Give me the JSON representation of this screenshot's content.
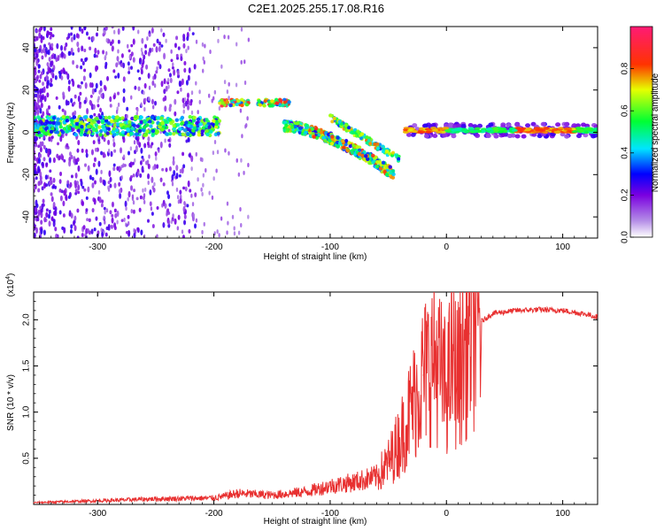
{
  "title": "C2E1.2025.255.17.08.R16",
  "spectrogram": {
    "chart_data": {
      "type": "heatmap",
      "xlabel": "Height of straight line (km)",
      "ylabel": "Frequency (Hz)",
      "xlim": [
        -355,
        130
      ],
      "ylim": [
        -50,
        50
      ],
      "xticks": [
        -300,
        -200,
        -100,
        0,
        100
      ],
      "yticks": [
        -40,
        -20,
        0,
        20,
        40
      ],
      "colorbar": {
        "label": "Normalized spectral amplitude",
        "range": [
          0,
          1
        ],
        "ticks": [
          0.0,
          0.2,
          0.4,
          0.6,
          0.8
        ],
        "tick_labels": [
          "0.0",
          "0.2",
          "0.4",
          "0.6",
          "0.8"
        ],
        "colors": [
          "#ffffff",
          "#8a2be2",
          "#0000ff",
          "#00ffff",
          "#00ff00",
          "#ffff00",
          "#ff0000",
          "#ff1493"
        ]
      },
      "features": [
        {
          "name": "main band",
          "x_range": [
            -355,
            -195
          ],
          "freq_hz": 3,
          "amplitude": 0.45
        },
        {
          "name": "descending tone",
          "x_range": [
            -140,
            -45
          ],
          "freq_hz_start": 3,
          "freq_hz_end": -20,
          "amplitude": 0.6
        },
        {
          "name": "upper tone",
          "x_range": [
            -195,
            -135
          ],
          "freq_hz": 14,
          "amplitude": 0.65
        },
        {
          "name": "stable carrier",
          "x_range": [
            -35,
            130
          ],
          "freq_hz": 1,
          "amplitude": 0.85
        }
      ]
    }
  },
  "snr": {
    "chart_data": {
      "type": "line",
      "xlabel": "Height of straight line (km)",
      "ylabel": "SNR (10 * v/v)",
      "scale_label": "(x10",
      "scale_exponent": "4",
      "scale_close": ")",
      "xlim": [
        -355,
        130
      ],
      "ylim": [
        0,
        2.3
      ],
      "xticks": [
        -300,
        -200,
        -100,
        0,
        100
      ],
      "yticks": [
        0.5,
        1.0,
        1.5,
        2.0
      ],
      "ytick_labels": [
        "0.5",
        "1.0",
        "1.5",
        "2.0"
      ],
      "color": "#e83030",
      "x": [
        -355,
        -300,
        -250,
        -200,
        -190,
        -180,
        -150,
        -120,
        -100,
        -80,
        -60,
        -50,
        -40,
        -30,
        -20,
        -10,
        0,
        5,
        10,
        20,
        30,
        40,
        60,
        80,
        100,
        120,
        130
      ],
      "y": [
        0.02,
        0.04,
        0.06,
        0.07,
        0.09,
        0.12,
        0.1,
        0.14,
        0.2,
        0.24,
        0.3,
        0.45,
        0.7,
        1.05,
        1.4,
        1.6,
        1.25,
        1.55,
        1.4,
        1.85,
        1.98,
        2.07,
        2.1,
        2.11,
        2.1,
        2.06,
        2.03
      ]
    }
  }
}
